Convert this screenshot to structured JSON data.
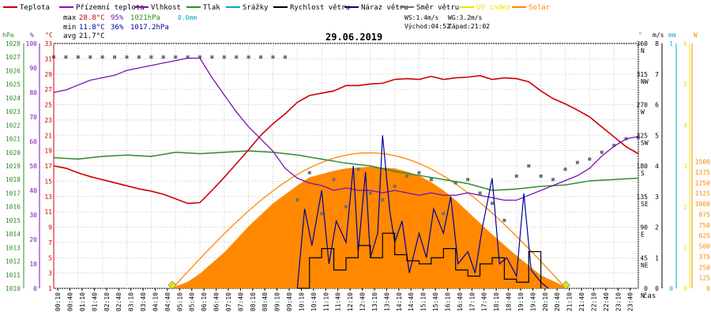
{
  "legend": [
    {
      "label": "Teplota",
      "color": "#cc0000"
    },
    {
      "label": "Přízemní teplota",
      "color": "#9900cc"
    },
    {
      "label": "Vlhkost",
      "color": "#7a12b3"
    },
    {
      "label": "Tlak",
      "color": "#2e8b2e"
    },
    {
      "label": "Srážky",
      "color": "#00aacc"
    },
    {
      "label": "Rychlost větru",
      "color": "#000000"
    },
    {
      "label": "Náraz větru",
      "color": "#000099"
    },
    {
      "label": "Směr větru",
      "color": "#707070"
    },
    {
      "label": "UV index",
      "color": "#e6e600"
    },
    {
      "label": "Solar",
      "color": "#ff8800"
    }
  ],
  "stats": {
    "max_label": "max",
    "max_temp": "28.8°C",
    "max_hum": "95%",
    "max_press": "1021hPa",
    "rain": "0.0mm",
    "min_label": "min",
    "min_temp": "11.8°C",
    "min_hum": "36%",
    "min_press": "1017.2hPa",
    "avg_label": "avg",
    "avg_temp": "21.7°C"
  },
  "date": "29.06.2019",
  "wind_info": {
    "ws": "WS:1.4m/s",
    "wg": "WG:3.2m/s",
    "sunrise": "Východ:04:52",
    "sunset": "Západ:21:02"
  },
  "colors": {
    "temp": "#cc0000",
    "hum": "#7a12b3",
    "press": "#2e8b2e",
    "solar": "#ff8800",
    "gust": "#000099",
    "speed": "#000000",
    "dir": "#707070",
    "uv": "#e6e600",
    "rain": "#00aacc"
  },
  "chart_data": {
    "type": "line",
    "title": "29.06.2019",
    "xlabel": "čas",
    "x_ticks": [
      "00:10",
      "00:40",
      "01:10",
      "01:40",
      "02:10",
      "02:40",
      "03:10",
      "03:40",
      "04:10",
      "04:40",
      "05:10",
      "05:40",
      "06:10",
      "06:40",
      "07:10",
      "07:40",
      "08:10",
      "08:40",
      "09:10",
      "09:40",
      "10:10",
      "10:40",
      "11:10",
      "11:40",
      "12:10",
      "12:40",
      "13:10",
      "13:40",
      "14:10",
      "14:40",
      "15:10",
      "15:40",
      "16:10",
      "16:40",
      "17:10",
      "17:40",
      "18:10",
      "18:40",
      "19:10",
      "19:40",
      "20:10",
      "20:40",
      "21:10",
      "21:40",
      "22:10",
      "22:40",
      "23:10",
      "23:40"
    ],
    "axes": {
      "pressure": {
        "unit": "hPa",
        "range": [
          1010,
          1028
        ],
        "ticks": [
          "1028",
          "1027",
          "1026",
          "1025",
          "1024",
          "1023",
          "1022",
          "1021",
          "1020",
          "1019",
          "1018",
          "1017",
          "1016",
          "1015",
          "1014",
          "1013",
          "1012",
          "1011",
          "1010"
        ]
      },
      "humidity": {
        "unit": "%",
        "range": [
          0,
          100
        ],
        "ticks": [
          "100",
          "90",
          "80",
          "70",
          "60",
          "50",
          "40",
          "30",
          "20",
          "10",
          "0"
        ]
      },
      "temperature": {
        "unit": "°C",
        "range": [
          1,
          33
        ],
        "ticks": [
          "33",
          "31",
          "29",
          "27",
          "25",
          "23",
          "21",
          "19",
          "17",
          "15",
          "13",
          "11",
          "9",
          "7",
          "5",
          "3",
          "1"
        ]
      },
      "direction": {
        "unit": "°",
        "ticks": [
          "360",
          "315",
          "270",
          "225",
          "180",
          "135",
          "90",
          "45",
          "0"
        ],
        "compass": [
          "N",
          "NW",
          "W",
          "SW",
          "S",
          "SE",
          "E",
          "NE",
          "N"
        ]
      },
      "wind": {
        "unit": "m/s",
        "ticks": [
          "8",
          "7",
          "6",
          "5",
          "4",
          "3",
          "2",
          "1",
          "0"
        ]
      },
      "rain": {
        "unit": "mm",
        "ticks": [
          "1",
          "0"
        ]
      },
      "uv": {
        "ticks": [
          "6",
          "5",
          "4",
          "3",
          "2",
          "1",
          "0"
        ]
      },
      "solar": {
        "unit": "W",
        "ticks": [
          "1500",
          "1375",
          "1250",
          "1125",
          "1000",
          "875",
          "750",
          "625",
          "500",
          "375",
          "250",
          "125",
          "0"
        ]
      }
    },
    "series": [
      {
        "name": "Teplota",
        "unit": "°C",
        "x": [
          0,
          0.5,
          1,
          1.5,
          2,
          2.5,
          3,
          3.5,
          4,
          4.5,
          5,
          5.5,
          6,
          6.5,
          7,
          7.5,
          8,
          8.5,
          9,
          9.5,
          10,
          10.5,
          11,
          11.5,
          12,
          12.5,
          13,
          13.5,
          14,
          14.5,
          15,
          15.5,
          16,
          16.5,
          17,
          17.5,
          18,
          18.5,
          19,
          19.5,
          20,
          20.5,
          21,
          21.5,
          22,
          22.5,
          23,
          23.5,
          24
        ],
        "values": [
          17,
          16.7,
          16.1,
          15.6,
          15.2,
          14.8,
          14.4,
          14,
          13.7,
          13.3,
          12.7,
          12.1,
          12.2,
          13.8,
          15.5,
          17.3,
          19.1,
          21,
          22.5,
          23.8,
          25.3,
          26.2,
          26.5,
          26.8,
          27.5,
          27.5,
          27.7,
          27.8,
          28.3,
          28.4,
          28.3,
          28.7,
          28.3,
          28.5,
          28.6,
          28.8,
          28.3,
          28.5,
          28.4,
          28,
          26.8,
          25.8,
          25.1,
          24.3,
          23.4,
          22.1,
          20.8,
          19.5,
          18.6
        ]
      },
      {
        "name": "Vlhkost",
        "unit": "%",
        "x": [
          0,
          0.5,
          1,
          1.5,
          2,
          2.5,
          3,
          3.5,
          4,
          4.5,
          5,
          5.5,
          6,
          6.5,
          7,
          7.5,
          8,
          8.5,
          9,
          9.5,
          10,
          10.5,
          11,
          11.5,
          12,
          12.5,
          13,
          13.5,
          14,
          14.5,
          15,
          15.5,
          16,
          16.5,
          17,
          17.5,
          18,
          18.5,
          19,
          19.5,
          20,
          20.5,
          21,
          21.5,
          22,
          22.5,
          23,
          23.5,
          24
        ],
        "values": [
          80,
          81,
          83,
          85,
          86,
          87,
          89,
          90,
          91,
          92,
          93,
          94,
          94,
          86,
          79,
          72,
          66,
          61,
          56,
          49,
          45,
          43,
          42,
          40,
          41,
          40,
          40,
          39,
          40,
          39,
          38,
          39,
          38,
          38,
          39,
          38,
          37,
          36,
          36,
          38,
          40,
          42,
          44,
          46,
          49,
          54,
          58,
          61,
          62
        ]
      },
      {
        "name": "Tlak",
        "unit": "hPa",
        "x": [
          0,
          1,
          2,
          3,
          4,
          5,
          6,
          7,
          8,
          9,
          10,
          11,
          12,
          13,
          14,
          15,
          16,
          17,
          18,
          19,
          20,
          21,
          22,
          23,
          24
        ],
        "values": [
          1019.6,
          1019.5,
          1019.7,
          1019.8,
          1019.7,
          1020,
          1019.9,
          1020,
          1020.1,
          1020,
          1019.8,
          1019.5,
          1019.2,
          1019,
          1018.6,
          1018.3,
          1018,
          1017.7,
          1017.2,
          1017.3,
          1017.5,
          1017.6,
          1017.9,
          1018,
          1018.1
        ]
      },
      {
        "name": "Směr větru",
        "unit": "°",
        "x": [
          0,
          0.5,
          1,
          1.5,
          2,
          2.5,
          3,
          3.5,
          4,
          4.5,
          5,
          5.5,
          6,
          6.5,
          7,
          7.5,
          8,
          8.5,
          9,
          9.5,
          10,
          10.5,
          11,
          11.5,
          12,
          12.5,
          13,
          13.5,
          14,
          14.5,
          15,
          15.5,
          16,
          16.5,
          17,
          17.5,
          18,
          18.5,
          19,
          19.5,
          20,
          20.5,
          21,
          21.5,
          22,
          22.5,
          23,
          23.5,
          24
        ],
        "values": [
          340,
          340,
          340,
          340,
          340,
          340,
          340,
          340,
          340,
          340,
          340,
          340,
          340,
          340,
          340,
          340,
          340,
          340,
          340,
          340,
          130,
          170,
          110,
          160,
          120,
          175,
          140,
          130,
          150,
          165,
          170,
          160,
          110,
          155,
          160,
          140,
          125,
          100,
          165,
          180,
          165,
          160,
          175,
          185,
          190,
          200,
          210,
          220,
          222
        ]
      },
      {
        "name": "Náraz větru",
        "unit": "m/s",
        "x": [
          10,
          10.3,
          10.6,
          11,
          11.3,
          11.6,
          12,
          12.3,
          12.5,
          12.8,
          13,
          13.3,
          13.5,
          13.8,
          14,
          14.3,
          14.6,
          15,
          15.3,
          15.6,
          16,
          16.3,
          16.6,
          17,
          17.3,
          17.6,
          18,
          18.3,
          18.6,
          19,
          19.3,
          19.6,
          20,
          20.3
        ],
        "values": [
          0,
          2.6,
          1.4,
          3.2,
          0.8,
          2.2,
          1.5,
          4.0,
          1.2,
          3.8,
          1.0,
          1.8,
          5.0,
          2.5,
          1.5,
          2.2,
          0.5,
          1.8,
          1.0,
          2.6,
          1.8,
          3.0,
          0.8,
          1.2,
          0.5,
          2.0,
          3.6,
          0.8,
          1.0,
          0.4,
          3.1,
          0.6,
          0.2,
          0
        ]
      },
      {
        "name": "Rychlost větru",
        "unit": "m/s",
        "x": [
          10,
          10.5,
          11,
          11.5,
          12,
          12.5,
          13,
          13.5,
          14,
          14.5,
          15,
          15.5,
          16,
          16.5,
          17,
          17.5,
          18,
          18.5,
          19,
          19.5,
          20
        ],
        "values": [
          0,
          1.0,
          1.3,
          0.6,
          1.0,
          1.4,
          1.0,
          1.8,
          1.1,
          0.9,
          0.8,
          1.0,
          1.3,
          0.6,
          0.4,
          0.8,
          1.0,
          0.3,
          0.2,
          1.2,
          0
        ]
      },
      {
        "name": "Solar",
        "unit": "W/m²",
        "x": [
          4.8,
          5.5,
          6,
          7,
          8,
          9,
          10,
          10.5,
          11,
          11.5,
          12,
          12.5,
          13,
          13.5,
          14,
          14.5,
          15,
          15.5,
          16,
          16.5,
          17,
          17.5,
          18,
          19,
          20,
          21,
          21.1
        ],
        "values": [
          0,
          40,
          90,
          220,
          380,
          520,
          630,
          680,
          700,
          720,
          735,
          740,
          745,
          740,
          735,
          715,
          690,
          650,
          600,
          540,
          470,
          400,
          330,
          200,
          80,
          10,
          0
        ]
      },
      {
        "name": "UV index",
        "unit": "",
        "x": [
          4.87,
          21.03
        ],
        "values": [
          0,
          0
        ]
      }
    ]
  }
}
